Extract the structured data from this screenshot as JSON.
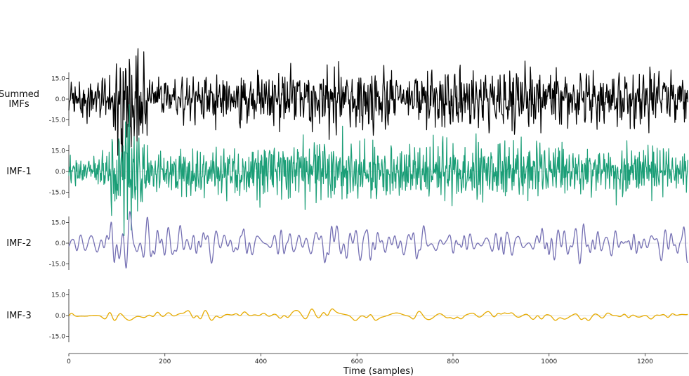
{
  "chart_data": {
    "type": "line",
    "xlabel": "Time (samples)",
    "x_ticks": [
      0,
      200,
      400,
      600,
      800,
      1000,
      1200
    ],
    "xlim": [
      0,
      1290
    ],
    "n_samples": 1290,
    "y_ticks": [
      "15.0",
      "0.0",
      "-15.0"
    ],
    "ylim": [
      -20,
      20
    ],
    "grid": false,
    "series": [
      {
        "name": "Summed IMFs",
        "label_lines": [
          "Summed",
          "IMFs"
        ],
        "color": "#000000",
        "envelope": [
          [
            0,
            10
          ],
          [
            60,
            12
          ],
          [
            80,
            12
          ],
          [
            90,
            20
          ],
          [
            110,
            33
          ],
          [
            130,
            30
          ],
          [
            150,
            25
          ],
          [
            175,
            12
          ],
          [
            220,
            12
          ],
          [
            400,
            15
          ],
          [
            600,
            17
          ],
          [
            700,
            14
          ],
          [
            800,
            17
          ],
          [
            900,
            16
          ],
          [
            1000,
            16
          ],
          [
            1100,
            14
          ],
          [
            1290,
            14
          ]
        ]
      },
      {
        "name": "IMF-1",
        "label_lines": [
          "IMF-1"
        ],
        "color": "#1b9e77",
        "envelope": [
          [
            0,
            8
          ],
          [
            60,
            6
          ],
          [
            80,
            13
          ],
          [
            95,
            25
          ],
          [
            115,
            30
          ],
          [
            140,
            28
          ],
          [
            165,
            10
          ],
          [
            220,
            10
          ],
          [
            400,
            14
          ],
          [
            600,
            17
          ],
          [
            700,
            12
          ],
          [
            800,
            17
          ],
          [
            900,
            16
          ],
          [
            1000,
            14
          ],
          [
            1100,
            12
          ],
          [
            1290,
            12
          ]
        ]
      },
      {
        "name": "IMF-2",
        "label_lines": [
          "IMF-2"
        ],
        "color": "#7570b3",
        "envelope": [
          [
            0,
            3
          ],
          [
            50,
            8
          ],
          [
            80,
            10
          ],
          [
            105,
            20
          ],
          [
            125,
            23
          ],
          [
            150,
            18
          ],
          [
            170,
            12
          ],
          [
            220,
            10
          ],
          [
            400,
            9
          ],
          [
            600,
            12
          ],
          [
            700,
            9
          ],
          [
            800,
            8
          ],
          [
            900,
            10
          ],
          [
            1000,
            12
          ],
          [
            1100,
            10
          ],
          [
            1290,
            11
          ]
        ]
      },
      {
        "name": "IMF-3",
        "label_lines": [
          "IMF-3"
        ],
        "color": "#e6ab02",
        "envelope": [
          [
            0,
            2
          ],
          [
            70,
            4
          ],
          [
            120,
            3
          ],
          [
            200,
            2
          ],
          [
            280,
            5
          ],
          [
            330,
            2
          ],
          [
            400,
            2
          ],
          [
            560,
            4
          ],
          [
            700,
            2
          ],
          [
            800,
            3
          ],
          [
            1000,
            3
          ],
          [
            1290,
            2
          ]
        ]
      }
    ]
  }
}
